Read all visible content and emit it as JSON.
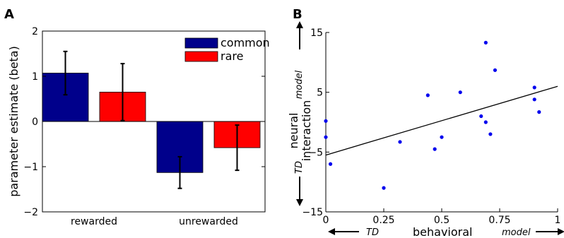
{
  "chart_data": [
    {
      "panel": "A",
      "type": "bar",
      "categories": [
        "rewarded",
        "unrewarded"
      ],
      "series": [
        {
          "name": "common",
          "color": "#00008b",
          "values": [
            1.07,
            -1.13
          ],
          "errors": [
            0.48,
            0.35
          ]
        },
        {
          "name": "rare",
          "color": "#ff0000",
          "values": [
            0.65,
            -0.58
          ],
          "errors": [
            0.63,
            0.5
          ]
        }
      ],
      "ylabel": "parameter estimate (beta)",
      "ylim": [
        -2,
        2
      ],
      "yticks": [
        "2",
        "1",
        "0",
        "−1",
        "−2"
      ],
      "legend": "top-right"
    },
    {
      "panel": "B",
      "type": "scatter",
      "points": [
        {
          "x": 0.0,
          "y": 0.2
        },
        {
          "x": 0.0,
          "y": -2.5
        },
        {
          "x": 0.02,
          "y": -7.0
        },
        {
          "x": 0.25,
          "y": -11.0
        },
        {
          "x": 0.32,
          "y": -3.3
        },
        {
          "x": 0.44,
          "y": 4.5
        },
        {
          "x": 0.47,
          "y": -4.5
        },
        {
          "x": 0.5,
          "y": -2.5
        },
        {
          "x": 0.58,
          "y": 5.0
        },
        {
          "x": 0.67,
          "y": 1.0
        },
        {
          "x": 0.69,
          "y": 0.0
        },
        {
          "x": 0.69,
          "y": 13.3
        },
        {
          "x": 0.71,
          "y": -2.0
        },
        {
          "x": 0.73,
          "y": 8.7
        },
        {
          "x": 0.9,
          "y": 5.8
        },
        {
          "x": 0.9,
          "y": 3.8
        },
        {
          "x": 0.92,
          "y": 1.7
        }
      ],
      "fit_line": {
        "x": [
          0,
          1
        ],
        "y": [
          -5.5,
          6.0
        ]
      },
      "point_color": "#0000ee",
      "xlabel": "behavioral",
      "ylabel": [
        "neural",
        "interaction"
      ],
      "xlim": [
        0,
        1
      ],
      "ylim": [
        -15,
        15
      ],
      "xticks": [
        "0",
        "0.25",
        "0.5",
        "0.75",
        "1"
      ],
      "yticks": [
        "15",
        "5",
        "−5",
        "−15"
      ],
      "x_arrow_left": "TD",
      "x_arrow_right": "model",
      "y_arrow_top": "model",
      "y_arrow_bottom": "TD"
    }
  ]
}
